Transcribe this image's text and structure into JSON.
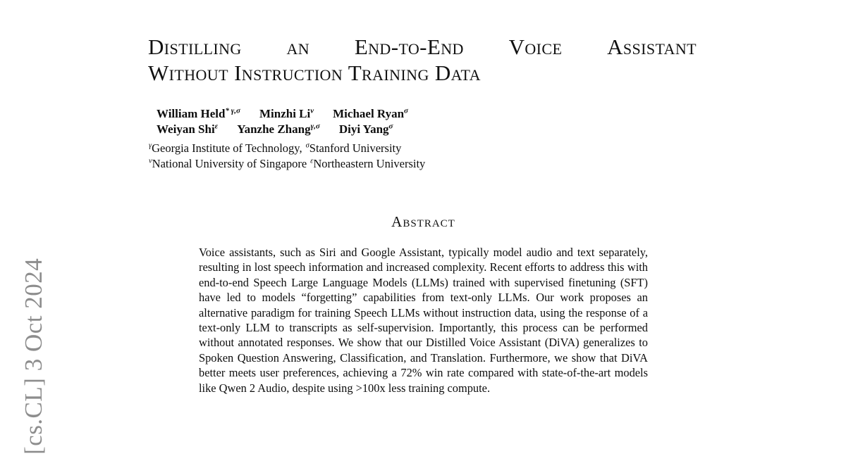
{
  "watermark": {
    "text": "[cs.CL] 3 Oct 2024",
    "color": "#8d8d8d"
  },
  "title": {
    "line1_words": [
      "Distilling",
      "an",
      "End-to-End",
      "Voice",
      "Assistant"
    ],
    "line2": "Without Instruction Training Data"
  },
  "authors": {
    "row1": [
      {
        "name": "William Held",
        "sup": "* γ,σ"
      },
      {
        "name": "Minzhi Li",
        "sup": "ν"
      },
      {
        "name": "Michael Ryan",
        "sup": "σ"
      }
    ],
    "row2": [
      {
        "name": "Weiyan Shi",
        "sup": "ε"
      },
      {
        "name": "Yanzhe Zhang",
        "sup": "γ,σ"
      },
      {
        "name": "Diyi Yang",
        "sup": "σ"
      }
    ]
  },
  "affiliations": {
    "row1": [
      {
        "sup": "γ",
        "text": "Georgia Institute of Technology,"
      },
      {
        "sup": "σ",
        "text": "Stanford University"
      }
    ],
    "row2": [
      {
        "sup": "ν",
        "text": "National University of Singapore"
      },
      {
        "sup": "ε",
        "text": "Northeastern University"
      }
    ]
  },
  "abstract": {
    "heading": "Abstract",
    "body": "Voice assistants, such as Siri and Google Assistant, typically model audio and text separately, resulting in lost speech information and increased complexity. Recent efforts to address this with end-to-end Speech Large Language Models (LLMs) trained with supervised finetuning (SFT) have led to models “forgetting” capabilities from text-only LLMs. Our work proposes an alternative paradigm for training Speech LLMs without instruction data, using the response of a text-only LLM to transcripts as self-supervision. Importantly, this process can be performed without annotated responses. We show that our Distilled Voice Assistant (DiVA) generalizes to Spoken Question Answering, Classification, and Translation. Furthermore, we show that DiVA better meets user preferences, achieving a 72% win rate compared with state-of-the-art models like Qwen 2 Audio, despite using >100x less training compute."
  }
}
